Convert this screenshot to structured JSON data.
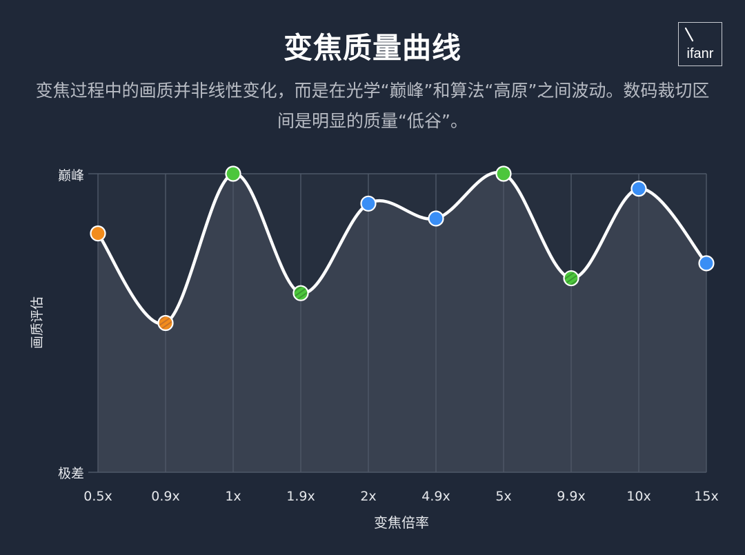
{
  "title": "变焦质量曲线",
  "subtitle": "变焦过程中的画质并非线性变化，而是在光学“巅峰”和算法“高原”之间波动。数码裁切区间是明显的质量“低谷”。",
  "logo": {
    "text": "ifanr"
  },
  "colors": {
    "background": "#1f2838",
    "plot_fill": "#394150",
    "grid": "#4f5868",
    "line": "#ffffff",
    "orange": "#f28c1c",
    "green": "#4cc63c",
    "blue": "#3a8ef5"
  },
  "chart_data": {
    "type": "line",
    "xlabel": "变焦倍率",
    "ylabel": "画质评估",
    "y_tick_labels": {
      "top": "巅峰",
      "bottom": "极差"
    },
    "ylim": [
      0,
      100
    ],
    "grid": true,
    "categories": [
      "0.5x",
      "0.9x",
      "1x",
      "1.9x",
      "2x",
      "4.9x",
      "5x",
      "9.9x",
      "10x",
      "15x"
    ],
    "values": [
      80,
      50,
      100,
      60,
      90,
      85,
      100,
      65,
      95,
      70
    ],
    "point_colors": [
      "orange",
      "orange",
      "green",
      "green",
      "blue",
      "blue",
      "green",
      "green",
      "blue",
      "blue"
    ],
    "point_styles": [
      "solid",
      "striped",
      "solid",
      "striped",
      "solid",
      "solid",
      "solid",
      "striped",
      "solid",
      "solid"
    ]
  }
}
